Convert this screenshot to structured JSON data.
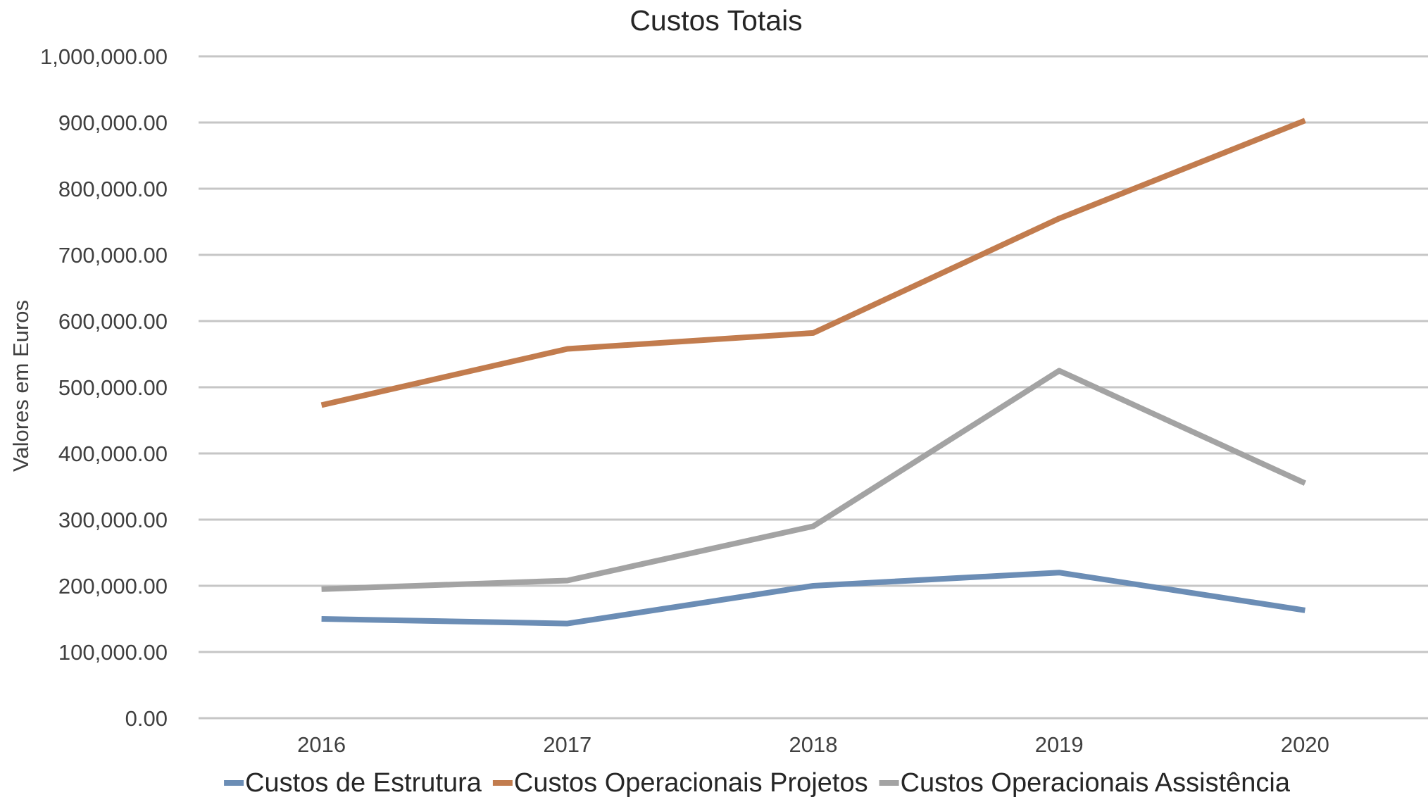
{
  "chart_data": {
    "type": "line",
    "title": "Custos Totais",
    "xlabel": "",
    "ylabel": "Valores em Euros",
    "categories": [
      "2016",
      "2017",
      "2018",
      "2019",
      "2020"
    ],
    "ylim": [
      0,
      1000000
    ],
    "yticks": [
      0,
      100000,
      200000,
      300000,
      400000,
      500000,
      600000,
      700000,
      800000,
      900000,
      1000000
    ],
    "ytick_labels": [
      "0.00",
      "100,000.00",
      "200,000.00",
      "300,000.00",
      "400,000.00",
      "500,000.00",
      "600,000.00",
      "700,000.00",
      "800,000.00",
      "900,000.00",
      "1,000,000.00"
    ],
    "grid": true,
    "legend_position": "bottom",
    "series": [
      {
        "name": "Custos de Estrutura",
        "color": "#6b8db5",
        "values": [
          150000,
          143000,
          200000,
          220000,
          163000
        ]
      },
      {
        "name": "Custos Operacionais Projetos",
        "color": "#c27c4e",
        "values": [
          473000,
          558000,
          582000,
          755000,
          903000
        ]
      },
      {
        "name": "Custos Operacionais Assistência",
        "color": "#a3a3a3",
        "values": [
          195000,
          208000,
          290000,
          525000,
          355000
        ]
      }
    ]
  }
}
